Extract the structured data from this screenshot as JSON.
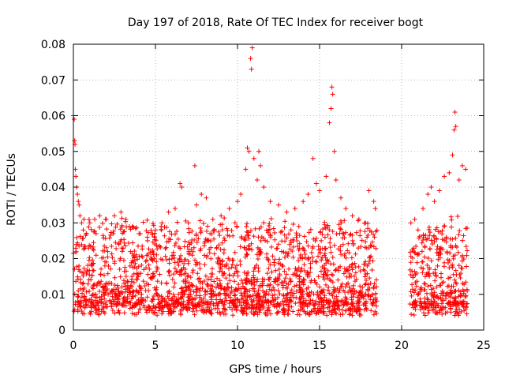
{
  "chart_data": {
    "type": "scatter",
    "title": "Day 197 of 2018, Rate Of TEC Index for receiver bogt",
    "xlabel": "GPS time / hours",
    "ylabel": "ROTI / TECUs",
    "xlim": [
      0,
      25
    ],
    "ylim": [
      0,
      0.08
    ],
    "xticks": [
      0,
      5,
      10,
      15,
      20,
      25
    ],
    "xtick_labels": [
      "0",
      "5",
      "10",
      "15",
      "20",
      "25"
    ],
    "yticks": [
      0,
      0.01,
      0.02,
      0.03,
      0.04,
      0.05,
      0.06,
      0.07,
      0.08
    ],
    "ytick_labels": [
      "0",
      "0.01",
      "0.02",
      "0.03",
      "0.04",
      "0.05",
      "0.06",
      "0.07",
      "0.08"
    ],
    "grid": true,
    "marker": "+",
    "color": "#ff0000",
    "data_gaps_hours": [
      [
        18.5,
        20.5
      ]
    ],
    "series": [
      {
        "name": "ROTI",
        "points": [
          [
            0.0,
            0.06
          ],
          [
            0.05,
            0.059
          ],
          [
            0.08,
            0.053
          ],
          [
            0.1,
            0.052
          ],
          [
            0.12,
            0.045
          ],
          [
            0.15,
            0.043
          ],
          [
            0.2,
            0.04
          ],
          [
            0.25,
            0.038
          ],
          [
            0.3,
            0.036
          ],
          [
            0.35,
            0.035
          ],
          [
            0.4,
            0.032
          ],
          [
            0.5,
            0.03
          ],
          [
            0.6,
            0.028
          ],
          [
            0.8,
            0.027
          ],
          [
            1.0,
            0.03
          ],
          [
            1.3,
            0.031
          ],
          [
            1.6,
            0.032
          ],
          [
            2.0,
            0.031
          ],
          [
            2.5,
            0.032
          ],
          [
            2.9,
            0.033
          ],
          [
            3.2,
            0.031
          ],
          [
            3.6,
            0.029
          ],
          [
            4.0,
            0.027
          ],
          [
            4.5,
            0.026
          ],
          [
            5.0,
            0.028
          ],
          [
            5.4,
            0.03
          ],
          [
            5.8,
            0.033
          ],
          [
            6.2,
            0.034
          ],
          [
            6.5,
            0.041
          ],
          [
            6.6,
            0.04
          ],
          [
            7.0,
            0.03
          ],
          [
            7.4,
            0.046
          ],
          [
            7.5,
            0.035
          ],
          [
            7.8,
            0.038
          ],
          [
            8.1,
            0.037
          ],
          [
            8.5,
            0.031
          ],
          [
            9.0,
            0.032
          ],
          [
            9.5,
            0.034
          ],
          [
            10.0,
            0.036
          ],
          [
            10.2,
            0.038
          ],
          [
            10.5,
            0.045
          ],
          [
            10.6,
            0.051
          ],
          [
            10.7,
            0.05
          ],
          [
            10.8,
            0.076
          ],
          [
            10.85,
            0.073
          ],
          [
            10.9,
            0.079
          ],
          [
            11.0,
            0.048
          ],
          [
            11.2,
            0.042
          ],
          [
            11.3,
            0.05
          ],
          [
            11.4,
            0.046
          ],
          [
            11.6,
            0.04
          ],
          [
            12.0,
            0.036
          ],
          [
            12.5,
            0.035
          ],
          [
            13.0,
            0.033
          ],
          [
            13.5,
            0.034
          ],
          [
            14.0,
            0.036
          ],
          [
            14.3,
            0.038
          ],
          [
            14.6,
            0.048
          ],
          [
            14.8,
            0.041
          ],
          [
            15.0,
            0.039
          ],
          [
            15.4,
            0.043
          ],
          [
            15.6,
            0.058
          ],
          [
            15.7,
            0.062
          ],
          [
            15.75,
            0.068
          ],
          [
            15.8,
            0.066
          ],
          [
            15.9,
            0.05
          ],
          [
            16.0,
            0.042
          ],
          [
            16.3,
            0.037
          ],
          [
            16.6,
            0.034
          ],
          [
            17.0,
            0.032
          ],
          [
            17.4,
            0.031
          ],
          [
            17.8,
            0.03
          ],
          [
            18.0,
            0.039
          ],
          [
            18.3,
            0.036
          ],
          [
            18.4,
            0.034
          ],
          [
            20.8,
            0.031
          ],
          [
            21.0,
            0.028
          ],
          [
            21.3,
            0.034
          ],
          [
            21.6,
            0.038
          ],
          [
            21.8,
            0.04
          ],
          [
            22.0,
            0.036
          ],
          [
            22.3,
            0.039
          ],
          [
            22.6,
            0.043
          ],
          [
            22.9,
            0.044
          ],
          [
            23.1,
            0.049
          ],
          [
            23.2,
            0.056
          ],
          [
            23.25,
            0.061
          ],
          [
            23.3,
            0.057
          ],
          [
            23.5,
            0.042
          ],
          [
            23.7,
            0.046
          ],
          [
            23.9,
            0.045
          ]
        ]
      }
    ]
  }
}
